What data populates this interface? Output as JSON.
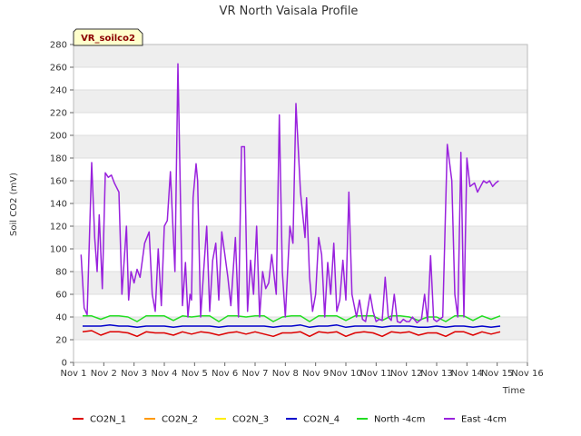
{
  "chart_data": {
    "type": "line",
    "title": "VR North Vaisala Profile",
    "badge": "VR_soilco2",
    "xlabel": "Time",
    "ylabel": "Soil CO2 (mV)",
    "xlim": [
      1,
      16
    ],
    "ylim": [
      0,
      280
    ],
    "x_ticks": [
      {
        "value": 1,
        "label": "Nov 1"
      },
      {
        "value": 2,
        "label": "Nov 2"
      },
      {
        "value": 3,
        "label": "Nov 3"
      },
      {
        "value": 4,
        "label": "Nov 4"
      },
      {
        "value": 5,
        "label": "Nov 5"
      },
      {
        "value": 6,
        "label": "Nov 6"
      },
      {
        "value": 7,
        "label": "Nov 7"
      },
      {
        "value": 8,
        "label": "Nov 8"
      },
      {
        "value": 9,
        "label": "Nov 9"
      },
      {
        "value": 10,
        "label": "Nov 10"
      },
      {
        "value": 11,
        "label": "Nov 11"
      },
      {
        "value": 12,
        "label": "Nov 12"
      },
      {
        "value": 13,
        "label": "Nov 13"
      },
      {
        "value": 14,
        "label": "Nov 14"
      },
      {
        "value": 15,
        "label": "Nov 15"
      },
      {
        "value": 16,
        "label": "Nov 16"
      }
    ],
    "y_ticks": [
      0,
      20,
      40,
      60,
      80,
      100,
      120,
      140,
      160,
      180,
      200,
      220,
      240,
      260,
      280
    ],
    "grid": true,
    "band_fill": "#eeeeee",
    "legend_position": "bottom",
    "series": [
      {
        "name": "CO2N_1",
        "color": "#dd0000",
        "x": [
          1.3,
          1.6,
          1.9,
          2.2,
          2.5,
          2.8,
          3.1,
          3.4,
          3.7,
          4.0,
          4.3,
          4.6,
          4.9,
          5.2,
          5.5,
          5.8,
          6.1,
          6.4,
          6.7,
          7.0,
          7.3,
          7.6,
          7.9,
          8.2,
          8.5,
          8.8,
          9.1,
          9.4,
          9.7,
          10.0,
          10.3,
          10.6,
          10.9,
          11.2,
          11.5,
          11.8,
          12.1,
          12.4,
          12.7,
          13.0,
          13.3,
          13.6,
          13.9,
          14.2,
          14.5,
          14.8,
          15.1
        ],
        "y": [
          27,
          28,
          24,
          27,
          27,
          26,
          23,
          27,
          26,
          26,
          24,
          27,
          25,
          27,
          26,
          24,
          26,
          27,
          25,
          27,
          25,
          23,
          26,
          26,
          27,
          23,
          27,
          26,
          27,
          23,
          26,
          27,
          26,
          23,
          27,
          26,
          27,
          24,
          26,
          26,
          23,
          27,
          27,
          24,
          27,
          25,
          27
        ]
      },
      {
        "name": "CO2N_2",
        "color": "#ff9900",
        "x": [],
        "y": []
      },
      {
        "name": "CO2N_3",
        "color": "#ffee00",
        "x": [],
        "y": []
      },
      {
        "name": "CO2N_4",
        "color": "#0000cc",
        "x": [
          1.3,
          1.6,
          1.9,
          2.2,
          2.5,
          2.8,
          3.1,
          3.4,
          3.7,
          4.0,
          4.3,
          4.6,
          4.9,
          5.2,
          5.5,
          5.8,
          6.1,
          6.4,
          6.7,
          7.0,
          7.3,
          7.6,
          7.9,
          8.2,
          8.5,
          8.8,
          9.1,
          9.4,
          9.7,
          10.0,
          10.3,
          10.6,
          10.9,
          11.2,
          11.5,
          11.8,
          12.1,
          12.4,
          12.7,
          13.0,
          13.3,
          13.6,
          13.9,
          14.2,
          14.5,
          14.8,
          15.1
        ],
        "y": [
          32,
          32,
          32,
          33,
          32,
          32,
          31,
          32,
          32,
          32,
          31,
          32,
          32,
          32,
          32,
          31,
          32,
          32,
          32,
          32,
          32,
          31,
          32,
          32,
          33,
          31,
          32,
          32,
          33,
          31,
          32,
          32,
          32,
          31,
          32,
          32,
          32,
          31,
          31,
          32,
          31,
          32,
          32,
          31,
          32,
          31,
          32
        ]
      },
      {
        "name": "North -4cm",
        "color": "#22dd22",
        "x": [
          1.3,
          1.6,
          1.9,
          2.2,
          2.5,
          2.8,
          3.1,
          3.4,
          3.7,
          4.0,
          4.3,
          4.6,
          4.9,
          5.2,
          5.5,
          5.8,
          6.1,
          6.4,
          6.7,
          7.0,
          7.3,
          7.6,
          7.9,
          8.2,
          8.5,
          8.8,
          9.1,
          9.4,
          9.7,
          10.0,
          10.3,
          10.6,
          10.9,
          11.2,
          11.5,
          11.8,
          12.1,
          12.4,
          12.7,
          13.0,
          13.3,
          13.6,
          13.9,
          14.2,
          14.5,
          14.8,
          15.1
        ],
        "y": [
          41,
          41,
          38,
          41,
          41,
          40,
          36,
          41,
          41,
          41,
          37,
          41,
          40,
          41,
          41,
          36,
          41,
          41,
          40,
          41,
          41,
          36,
          40,
          41,
          41,
          36,
          41,
          41,
          41,
          37,
          41,
          41,
          41,
          37,
          41,
          41,
          40,
          37,
          40,
          40,
          36,
          41,
          41,
          37,
          41,
          38,
          41
        ]
      },
      {
        "name": "East -4cm",
        "color": "#9922dd",
        "x": [
          1.25,
          1.35,
          1.45,
          1.6,
          1.7,
          1.78,
          1.85,
          1.95,
          2.05,
          2.15,
          2.25,
          2.35,
          2.5,
          2.6,
          2.75,
          2.82,
          2.9,
          3.0,
          3.1,
          3.2,
          3.35,
          3.5,
          3.6,
          3.7,
          3.8,
          3.9,
          4.0,
          4.1,
          4.2,
          4.35,
          4.45,
          4.6,
          4.7,
          4.78,
          4.85,
          4.9,
          4.95,
          5.05,
          5.1,
          5.2,
          5.3,
          5.4,
          5.5,
          5.6,
          5.7,
          5.8,
          5.9,
          6.0,
          6.1,
          6.2,
          6.35,
          6.45,
          6.55,
          6.65,
          6.75,
          6.85,
          6.95,
          7.05,
          7.15,
          7.25,
          7.35,
          7.45,
          7.55,
          7.7,
          7.8,
          7.9,
          8.0,
          8.15,
          8.25,
          8.35,
          8.5,
          8.65,
          8.7,
          8.8,
          8.9,
          9.0,
          9.1,
          9.2,
          9.3,
          9.4,
          9.5,
          9.6,
          9.7,
          9.8,
          9.9,
          10.0,
          10.1,
          10.2,
          10.35,
          10.45,
          10.55,
          10.65,
          10.8,
          10.9,
          11.0,
          11.1,
          11.2,
          11.3,
          11.4,
          11.5,
          11.6,
          11.7,
          11.8,
          11.9,
          12.0,
          12.1,
          12.2,
          12.35,
          12.5,
          12.6,
          12.7,
          12.8,
          12.9,
          13.0,
          13.1,
          13.2,
          13.35,
          13.5,
          13.6,
          13.7,
          13.8,
          13.9,
          14.0,
          14.1,
          14.25,
          14.35,
          14.45,
          14.55,
          14.65,
          14.75,
          14.85,
          14.95,
          15.05
        ],
        "y": [
          95,
          48,
          42,
          176,
          110,
          80,
          130,
          65,
          167,
          163,
          165,
          158,
          150,
          60,
          120,
          55,
          80,
          70,
          82,
          75,
          105,
          115,
          60,
          45,
          100,
          50,
          120,
          125,
          168,
          80,
          263,
          50,
          88,
          40,
          60,
          55,
          145,
          175,
          160,
          40,
          80,
          120,
          45,
          90,
          105,
          55,
          115,
          95,
          75,
          50,
          110,
          40,
          190,
          190,
          45,
          90,
          60,
          120,
          40,
          80,
          65,
          70,
          95,
          60,
          218,
          80,
          40,
          120,
          105,
          228,
          150,
          110,
          145,
          75,
          45,
          60,
          110,
          95,
          40,
          88,
          60,
          105,
          45,
          55,
          90,
          55,
          150,
          60,
          40,
          55,
          38,
          36,
          60,
          45,
          36,
          38,
          37,
          75,
          40,
          37,
          60,
          36,
          35,
          38,
          36,
          36,
          40,
          35,
          38,
          60,
          36,
          94,
          38,
          36,
          38,
          40,
          192,
          160,
          60,
          40,
          185,
          40,
          180,
          155,
          158,
          150,
          155,
          160,
          158,
          160,
          155,
          158,
          160
        ]
      }
    ]
  }
}
